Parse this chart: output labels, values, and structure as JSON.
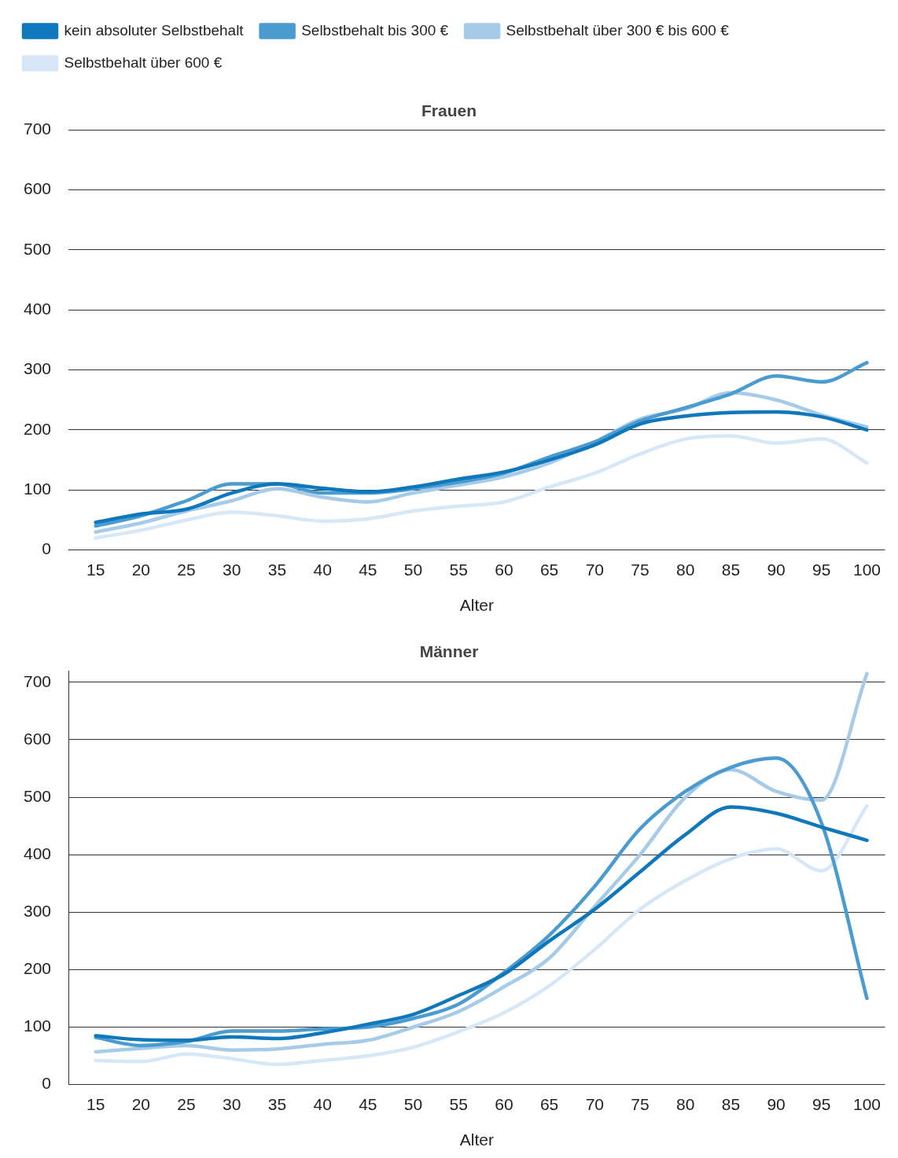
{
  "chart_data": [
    {
      "type": "line",
      "title": "Frauen",
      "xlabel": "Alter",
      "x": [
        15,
        20,
        25,
        30,
        35,
        40,
        45,
        50,
        55,
        60,
        65,
        70,
        75,
        80,
        85,
        90,
        95,
        100
      ],
      "xlim": [
        12,
        102
      ],
      "xticks": [
        15,
        20,
        25,
        30,
        35,
        40,
        45,
        50,
        55,
        60,
        65,
        70,
        75,
        80,
        85,
        90,
        95,
        100
      ],
      "ylim": [
        0,
        700
      ],
      "yticks": [
        0,
        100,
        200,
        300,
        400,
        500,
        600,
        700
      ],
      "grid": "y",
      "legend": "top",
      "marker": "none",
      "line_style": "solid",
      "series": [
        {
          "name": "kein absoluter Selbstbehalt",
          "color": "#0f78bd",
          "values": [
            46,
            60,
            68,
            95,
            110,
            103,
            97,
            105,
            118,
            130,
            150,
            175,
            210,
            223,
            229,
            230,
            222,
            200
          ]
        },
        {
          "name": "Selbstbehalt bis 300 €",
          "color": "#4a9bd0",
          "values": [
            40,
            57,
            82,
            110,
            110,
            95,
            95,
            102,
            113,
            128,
            155,
            180,
            215,
            237,
            260,
            290,
            280,
            312
          ]
        },
        {
          "name": "Selbstbehalt über 300 € bis 600 €",
          "color": "#a5cbe8",
          "values": [
            30,
            45,
            65,
            82,
            102,
            88,
            80,
            95,
            108,
            122,
            145,
            180,
            218,
            235,
            262,
            250,
            225,
            205
          ]
        },
        {
          "name": "Selbstbehalt über 600 €",
          "color": "#d6e7f7",
          "values": [
            20,
            33,
            50,
            63,
            57,
            48,
            52,
            65,
            73,
            80,
            105,
            128,
            160,
            185,
            190,
            178,
            185,
            145
          ]
        }
      ]
    },
    {
      "type": "line",
      "title": "Männer",
      "xlabel": "Alter",
      "x": [
        15,
        20,
        25,
        30,
        35,
        40,
        45,
        50,
        55,
        60,
        65,
        70,
        75,
        80,
        85,
        90,
        95,
        100
      ],
      "xlim": [
        12,
        102
      ],
      "xticks": [
        15,
        20,
        25,
        30,
        35,
        40,
        45,
        50,
        55,
        60,
        65,
        70,
        75,
        80,
        85,
        90,
        95,
        100
      ],
      "ylim": [
        0,
        720
      ],
      "yticks": [
        0,
        100,
        200,
        300,
        400,
        500,
        600,
        700
      ],
      "grid": "y",
      "legend": false,
      "marker": "none",
      "line_style": "solid",
      "series": [
        {
          "color": "#0f78bd",
          "values": [
            85,
            78,
            77,
            83,
            80,
            90,
            105,
            122,
            155,
            192,
            250,
            305,
            370,
            435,
            483,
            472,
            448,
            425
          ]
        },
        {
          "color": "#4a9bd0",
          "values": [
            82,
            68,
            75,
            93,
            93,
            97,
            100,
            115,
            140,
            195,
            260,
            345,
            445,
            510,
            552,
            568,
            455,
            150
          ]
        },
        {
          "color": "#a5cbe8",
          "values": [
            57,
            63,
            68,
            60,
            62,
            70,
            77,
            100,
            127,
            170,
            220,
            310,
            400,
            500,
            548,
            510,
            495,
            715
          ]
        },
        {
          "color": "#d6e7f7",
          "values": [
            42,
            40,
            53,
            45,
            35,
            42,
            50,
            65,
            92,
            125,
            172,
            235,
            305,
            355,
            393,
            410,
            372,
            485
          ]
        }
      ]
    }
  ]
}
